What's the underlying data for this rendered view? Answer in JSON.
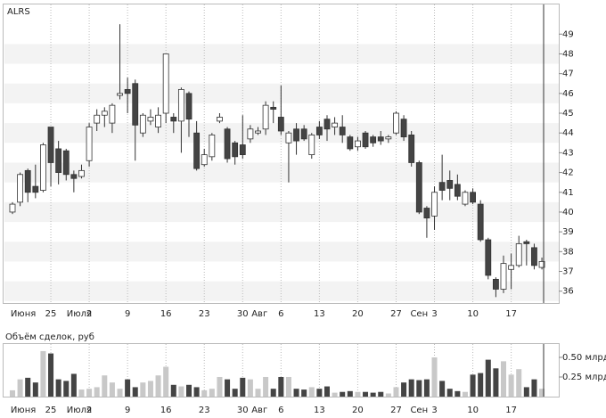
{
  "chart_data": [
    {
      "type": "candlestick",
      "title": "ALRS",
      "up_color": "#ffffff",
      "down_color": "#444444",
      "stroke": "#333333",
      "stripes": true,
      "open": [
        40.0,
        40.5,
        42.1,
        41.3,
        41.1,
        44.3,
        43.2,
        43.1,
        41.9,
        41.8,
        42.6,
        44.5,
        44.9,
        44.5,
        45.9,
        46.2,
        46.5,
        44.0,
        44.6,
        44.3,
        45.0,
        44.8,
        44.6,
        46.0,
        44.0,
        42.4,
        42.8,
        44.6,
        44.2,
        43.5,
        43.4,
        43.7,
        44.0,
        44.2,
        45.3,
        44.8,
        43.5,
        44.2,
        44.2,
        42.9,
        44.3,
        44.7,
        44.3,
        44.3,
        43.8,
        43.3,
        44.0,
        43.8,
        43.8,
        43.7,
        44.0,
        44.7,
        43.9,
        42.5,
        40.2,
        39.8,
        41.5,
        41.6,
        41.4,
        40.4,
        41.0,
        40.4,
        38.6,
        36.6,
        36.1,
        37.1,
        37.3,
        38.5,
        38.2,
        37.2
      ],
      "high": [
        40.5,
        42.0,
        42.2,
        42.4,
        43.5,
        44.3,
        43.6,
        43.2,
        42.1,
        42.4,
        44.5,
        45.2,
        45.3,
        45.5,
        49.5,
        46.8,
        46.7,
        45.0,
        45.2,
        45.3,
        48.0,
        45.0,
        46.3,
        46.1,
        44.6,
        43.2,
        44.0,
        45.0,
        44.3,
        43.6,
        44.9,
        44.4,
        44.3,
        45.6,
        45.6,
        46.4,
        44.1,
        44.5,
        44.4,
        44.0,
        44.6,
        44.9,
        44.8,
        44.9,
        43.9,
        43.8,
        44.1,
        43.9,
        44.1,
        43.9,
        45.1,
        44.9,
        44.1,
        42.6,
        40.3,
        41.3,
        42.9,
        42.1,
        41.9,
        41.1,
        41.2,
        40.6,
        38.7,
        36.7,
        37.8,
        37.9,
        38.8,
        38.6,
        38.4,
        37.7
      ],
      "low": [
        39.9,
        40.3,
        40.5,
        40.7,
        41.0,
        41.3,
        41.4,
        41.6,
        41.0,
        41.7,
        42.3,
        44.1,
        44.3,
        44.0,
        45.7,
        45.0,
        42.6,
        43.8,
        44.4,
        44.0,
        44.5,
        44.0,
        43.0,
        43.8,
        42.1,
        42.3,
        42.6,
        44.5,
        42.5,
        42.4,
        42.7,
        43.5,
        43.9,
        43.9,
        44.5,
        43.9,
        41.5,
        42.9,
        43.6,
        42.7,
        43.7,
        43.6,
        43.9,
        43.5,
        43.1,
        43.1,
        43.2,
        43.3,
        43.4,
        43.5,
        43.9,
        43.6,
        42.3,
        39.9,
        38.7,
        39.1,
        40.6,
        40.6,
        40.6,
        40.3,
        40.4,
        38.5,
        36.6,
        35.7,
        35.9,
        36.1,
        37.2,
        37.3,
        37.1,
        37.1
      ],
      "close": [
        40.4,
        41.9,
        41.0,
        41.0,
        43.4,
        42.5,
        42.0,
        41.9,
        41.7,
        42.1,
        44.3,
        44.9,
        45.1,
        45.4,
        46.0,
        46.0,
        44.4,
        44.9,
        44.8,
        44.9,
        48.0,
        44.6,
        46.2,
        44.7,
        42.2,
        42.9,
        43.9,
        44.8,
        42.7,
        42.8,
        42.9,
        44.2,
        44.1,
        45.4,
        45.2,
        44.1,
        44.0,
        43.6,
        43.7,
        43.9,
        43.9,
        44.2,
        44.5,
        43.9,
        43.2,
        43.6,
        43.3,
        43.5,
        43.6,
        43.8,
        45.0,
        43.8,
        42.5,
        40.0,
        39.7,
        41.0,
        41.1,
        41.2,
        40.8,
        41.0,
        40.5,
        38.6,
        36.8,
        36.1,
        37.4,
        37.3,
        38.4,
        38.4,
        37.3,
        37.5
      ],
      "xlim": [
        -1.16,
        71.2
      ],
      "ylim": [
        35.4,
        50.5
      ],
      "yticks": [
        36,
        37,
        38,
        39,
        40,
        41,
        42,
        43,
        44,
        45,
        46,
        47,
        48,
        49
      ],
      "xticks": [
        {
          "value": 5,
          "label": "25"
        },
        {
          "value": 10,
          "label": "2"
        },
        {
          "value": 15,
          "label": "9"
        },
        {
          "value": 20,
          "label": "16"
        },
        {
          "value": 25,
          "label": "23"
        },
        {
          "value": 30,
          "label": "30"
        },
        {
          "value": 35,
          "label": "6"
        },
        {
          "value": 40,
          "label": "13"
        },
        {
          "value": 45,
          "label": "20"
        },
        {
          "value": 50,
          "label": "27"
        },
        {
          "value": 55,
          "label": "3"
        },
        {
          "value": 60,
          "label": "10"
        },
        {
          "value": 65,
          "label": "17"
        }
      ],
      "month_labels": [
        {
          "value": 1.4,
          "label": "Июня"
        },
        {
          "value": 8.7,
          "label": "Июля"
        },
        {
          "value": 32.2,
          "label": "Авг"
        },
        {
          "value": 53,
          "label": "Сен"
        }
      ]
    },
    {
      "type": "bar",
      "title": "Объём сделок, руб",
      "color": "#c8c8c8",
      "down_color": "#444444",
      "values": [
        0.08,
        0.22,
        0.24,
        0.18,
        0.58,
        0.55,
        0.22,
        0.2,
        0.29,
        0.09,
        0.1,
        0.12,
        0.27,
        0.18,
        0.1,
        0.22,
        0.12,
        0.18,
        0.2,
        0.27,
        0.38,
        0.15,
        0.13,
        0.15,
        0.12,
        0.08,
        0.1,
        0.25,
        0.22,
        0.1,
        0.24,
        0.22,
        0.1,
        0.25,
        0.1,
        0.25,
        0.25,
        0.1,
        0.09,
        0.12,
        0.1,
        0.13,
        0.05,
        0.06,
        0.07,
        0.06,
        0.06,
        0.05,
        0.06,
        0.04,
        0.12,
        0.18,
        0.22,
        0.21,
        0.22,
        0.5,
        0.2,
        0.1,
        0.07,
        0.06,
        0.28,
        0.3,
        0.47,
        0.36,
        0.45,
        0.28,
        0.35,
        0.12,
        0.22,
        0.1
      ],
      "xlim": [
        -1.16,
        71.2
      ],
      "ylim": [
        0,
        0.67
      ],
      "yticks": [
        {
          "value": 0.25,
          "label": "0.25 млрд"
        },
        {
          "value": 0.5,
          "label": "0.50 млрд"
        }
      ],
      "xticks": [
        {
          "value": 5,
          "label": "25"
        },
        {
          "value": 10,
          "label": "2"
        },
        {
          "value": 15,
          "label": "9"
        },
        {
          "value": 20,
          "label": "16"
        },
        {
          "value": 25,
          "label": "23"
        },
        {
          "value": 30,
          "label": "30"
        },
        {
          "value": 35,
          "label": "6"
        },
        {
          "value": 40,
          "label": "13"
        },
        {
          "value": 45,
          "label": "20"
        },
        {
          "value": 50,
          "label": "27"
        },
        {
          "value": 55,
          "label": "3"
        },
        {
          "value": 60,
          "label": "10"
        },
        {
          "value": 65,
          "label": "17"
        }
      ],
      "month_labels": [
        {
          "value": 1.4,
          "label": "Июня"
        },
        {
          "value": 8.7,
          "label": "Июля"
        },
        {
          "value": 32.2,
          "label": "Авг"
        },
        {
          "value": 53,
          "label": "Сен"
        }
      ]
    }
  ]
}
